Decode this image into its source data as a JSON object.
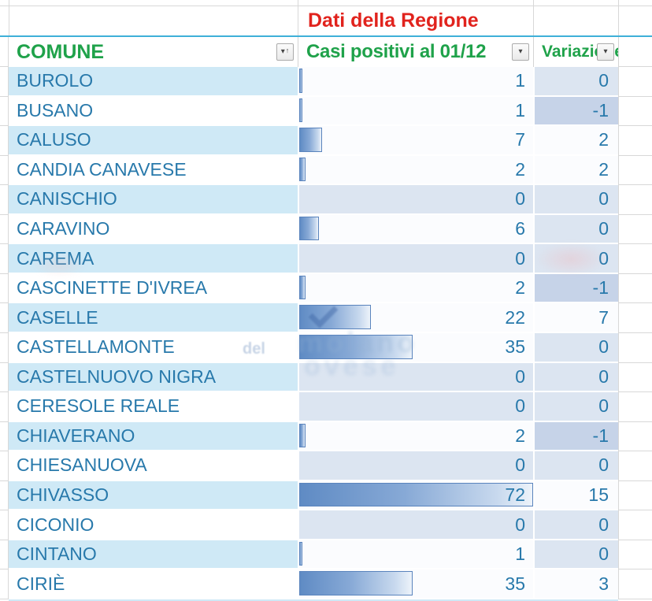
{
  "sheet": {
    "region_header": "Dati della Regione",
    "columns": {
      "comune_label": "COMUNE",
      "casi_label": "Casi positivi al 01/12",
      "variazione_label": "Variazione"
    },
    "rows": [
      {
        "comune": "BUROLO",
        "casi": 1,
        "variazione": 0
      },
      {
        "comune": "BUSANO",
        "casi": 1,
        "variazione": -1
      },
      {
        "comune": "CALUSO",
        "casi": 7,
        "variazione": 2
      },
      {
        "comune": "CANDIA CANAVESE",
        "casi": 2,
        "variazione": 2
      },
      {
        "comune": "CANISCHIO",
        "casi": 0,
        "variazione": 0
      },
      {
        "comune": "CARAVINO",
        "casi": 6,
        "variazione": 0
      },
      {
        "comune": "CAREMA",
        "casi": 0,
        "variazione": 0
      },
      {
        "comune": "CASCINETTE D'IVREA",
        "casi": 2,
        "variazione": -1
      },
      {
        "comune": "CASELLE",
        "casi": 22,
        "variazione": 7
      },
      {
        "comune": "CASTELLAMONTE",
        "casi": 35,
        "variazione": 0
      },
      {
        "comune": "CASTELNUOVO NIGRA",
        "casi": 0,
        "variazione": 0
      },
      {
        "comune": "CERESOLE REALE",
        "casi": 0,
        "variazione": 0
      },
      {
        "comune": "CHIAVERANO",
        "casi": 2,
        "variazione": -1
      },
      {
        "comune": "CHIESANUOVA",
        "casi": 0,
        "variazione": 0
      },
      {
        "comune": "CHIVASSO",
        "casi": 72,
        "variazione": 15
      },
      {
        "comune": "CICONIO",
        "casi": 0,
        "variazione": 0
      },
      {
        "comune": "CINTANO",
        "casi": 1,
        "variazione": 0
      },
      {
        "comune": "CIRIÈ",
        "casi": 35,
        "variazione": 3
      }
    ],
    "bar_max": 72
  },
  "icons": {
    "filter_dropdown": "▾",
    "sort_ascending": "↑"
  },
  "colors": {
    "header_green": "#1fa24a",
    "title_red": "#e1231d",
    "text_blue": "#2879ab",
    "band_blue": "#cfe9f6",
    "band_white": "#ffffff",
    "cell_zero": "#dce5f1",
    "cell_negative": "#c6d3e8",
    "cell_positive": "#fbfcfe",
    "bar_blue": "#5f8bc4",
    "table_top_line": "#3fb0d8"
  },
  "watermark": {
    "fragment_small": "del",
    "fragment_big1": "molano",
    "fragment_big2": "ovese"
  }
}
